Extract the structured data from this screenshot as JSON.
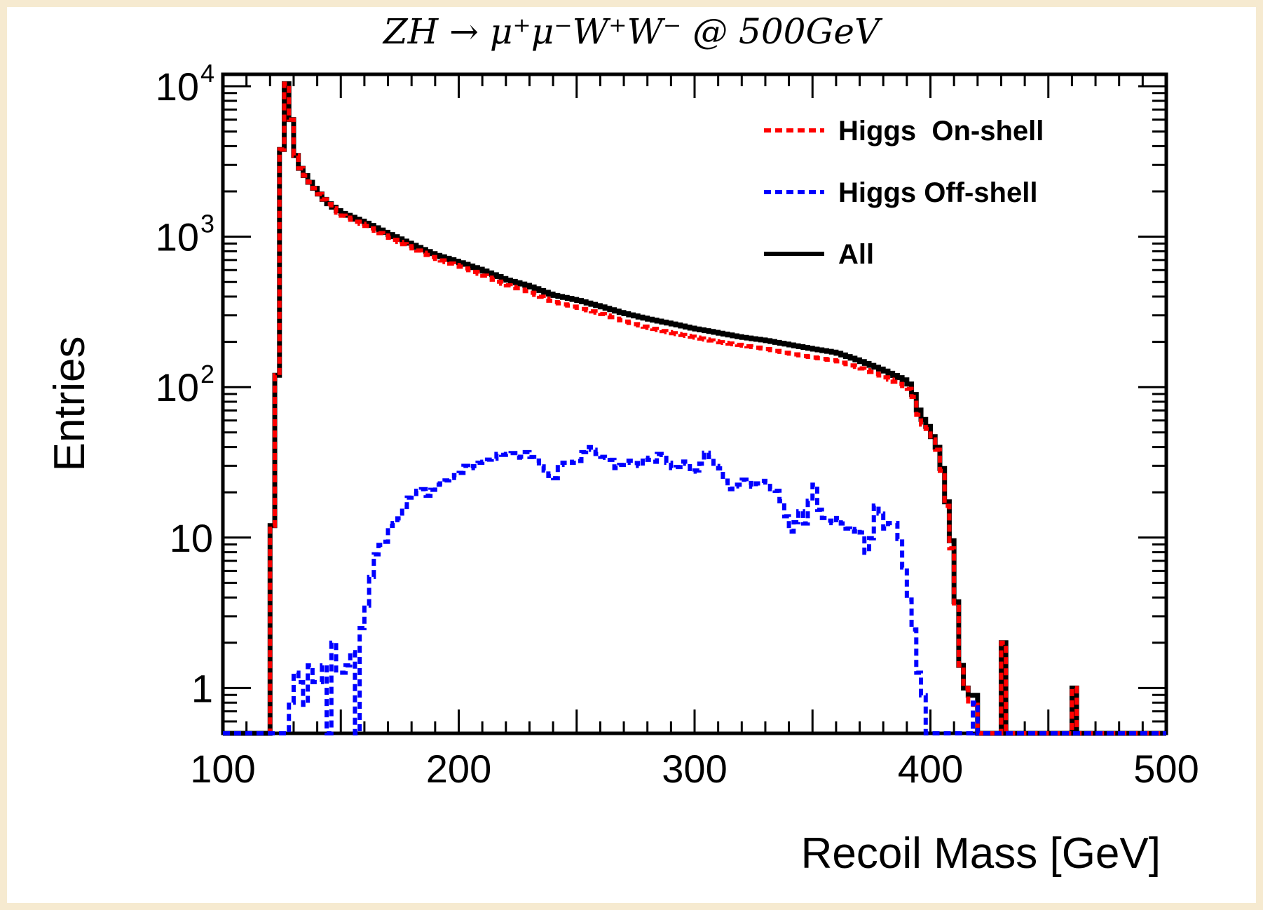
{
  "chart_data": {
    "type": "line",
    "title": "ZH → μ⁺μ⁻W⁺W⁻ @ 500GeV",
    "xlabel": "Recoil Mass [GeV]",
    "ylabel": "Entries",
    "xlim": [
      100,
      500
    ],
    "ylim": [
      0.5,
      12000
    ],
    "yscale": "log",
    "grid": false,
    "legend_position": "top-right",
    "x_ticks": [
      "100",
      "200",
      "300",
      "400",
      "500"
    ],
    "y_ticks": [
      {
        "value": 1,
        "label": "1"
      },
      {
        "value": 10,
        "label": "10"
      },
      {
        "value": 100,
        "label": "10",
        "exp": "2"
      },
      {
        "value": 1000,
        "label": "10",
        "exp": "3"
      },
      {
        "value": 10000,
        "label": "10",
        "exp": "4"
      }
    ],
    "bin_width": 2,
    "series": [
      {
        "name": "Higgs  On-shell",
        "color": "#ff0000",
        "style": "dashed",
        "points": [
          [
            100,
            0
          ],
          [
            120,
            0
          ],
          [
            122,
            12
          ],
          [
            124,
            1200
          ],
          [
            126,
            12000
          ],
          [
            128,
            9000
          ],
          [
            130,
            4000
          ],
          [
            132,
            3000
          ],
          [
            134,
            2700
          ],
          [
            136,
            2400
          ],
          [
            138,
            2200
          ],
          [
            140,
            2000
          ],
          [
            144,
            1700
          ],
          [
            150,
            1400
          ],
          [
            160,
            1200
          ],
          [
            170,
            1000
          ],
          [
            180,
            850
          ],
          [
            190,
            720
          ],
          [
            200,
            640
          ],
          [
            210,
            560
          ],
          [
            220,
            480
          ],
          [
            230,
            430
          ],
          [
            240,
            370
          ],
          [
            250,
            340
          ],
          [
            260,
            310
          ],
          [
            270,
            275
          ],
          [
            280,
            250
          ],
          [
            290,
            230
          ],
          [
            300,
            215
          ],
          [
            310,
            200
          ],
          [
            320,
            190
          ],
          [
            330,
            180
          ],
          [
            340,
            168
          ],
          [
            350,
            158
          ],
          [
            360,
            150
          ],
          [
            370,
            135
          ],
          [
            380,
            118
          ],
          [
            390,
            100
          ],
          [
            392,
            95
          ],
          [
            394,
            78
          ],
          [
            396,
            55
          ],
          [
            398,
            58
          ],
          [
            400,
            48
          ],
          [
            402,
            42
          ],
          [
            404,
            35
          ],
          [
            406,
            22
          ],
          [
            408,
            12
          ],
          [
            410,
            6
          ],
          [
            412,
            2
          ],
          [
            414,
            1
          ],
          [
            416,
            1
          ],
          [
            418,
            0.6
          ],
          [
            420,
            1
          ],
          [
            422,
            0
          ],
          [
            430,
            0
          ],
          [
            432,
            2
          ],
          [
            434,
            0
          ],
          [
            436,
            0
          ],
          [
            460,
            0
          ],
          [
            462,
            1
          ],
          [
            464,
            0
          ],
          [
            500,
            0
          ]
        ]
      },
      {
        "name": "Higgs Off-shell",
        "color": "#0000ff",
        "style": "dashed",
        "points": [
          [
            100,
            0
          ],
          [
            128,
            0
          ],
          [
            130,
            0.8
          ],
          [
            132,
            2
          ],
          [
            134,
            0.6
          ],
          [
            136,
            1
          ],
          [
            138,
            2
          ],
          [
            140,
            0.6
          ],
          [
            142,
            2
          ],
          [
            144,
            1
          ],
          [
            146,
            0
          ],
          [
            148,
            2
          ],
          [
            150,
            0.8
          ],
          [
            152,
            2
          ],
          [
            154,
            1
          ],
          [
            156,
            3
          ],
          [
            158,
            0
          ],
          [
            160,
            2.5
          ],
          [
            162,
            5
          ],
          [
            164,
            6
          ],
          [
            166,
            10
          ],
          [
            168,
            8
          ],
          [
            170,
            11
          ],
          [
            172,
            13
          ],
          [
            174,
            12
          ],
          [
            176,
            15
          ],
          [
            178,
            17
          ],
          [
            180,
            20
          ],
          [
            182,
            19
          ],
          [
            184,
            22
          ],
          [
            186,
            20
          ],
          [
            188,
            18
          ],
          [
            190,
            24
          ],
          [
            192,
            21
          ],
          [
            194,
            25
          ],
          [
            196,
            23
          ],
          [
            198,
            27
          ],
          [
            200,
            25
          ],
          [
            202,
            29
          ],
          [
            204,
            31
          ],
          [
            206,
            27
          ],
          [
            208,
            33
          ],
          [
            210,
            30
          ],
          [
            212,
            34
          ],
          [
            214,
            32
          ],
          [
            216,
            35
          ],
          [
            218,
            37
          ],
          [
            220,
            34
          ],
          [
            222,
            38
          ],
          [
            224,
            35
          ],
          [
            226,
            33
          ],
          [
            228,
            36
          ],
          [
            230,
            38
          ],
          [
            232,
            31
          ],
          [
            234,
            34
          ],
          [
            236,
            26
          ],
          [
            238,
            30
          ],
          [
            240,
            22
          ],
          [
            242,
            28
          ],
          [
            244,
            33
          ],
          [
            246,
            30
          ],
          [
            248,
            34
          ],
          [
            250,
            29
          ],
          [
            252,
            36
          ],
          [
            254,
            38
          ],
          [
            256,
            42
          ],
          [
            258,
            35
          ],
          [
            260,
            37
          ],
          [
            262,
            32
          ],
          [
            264,
            36
          ],
          [
            266,
            30
          ],
          [
            268,
            28
          ],
          [
            270,
            33
          ],
          [
            272,
            30
          ],
          [
            274,
            35
          ],
          [
            276,
            28
          ],
          [
            278,
            32
          ],
          [
            280,
            36
          ],
          [
            282,
            30
          ],
          [
            284,
            34
          ],
          [
            286,
            38
          ],
          [
            288,
            33
          ],
          [
            290,
            30
          ],
          [
            292,
            28
          ],
          [
            294,
            31
          ],
          [
            296,
            33
          ],
          [
            298,
            29
          ],
          [
            300,
            26
          ],
          [
            302,
            30
          ],
          [
            304,
            32
          ],
          [
            306,
            42
          ],
          [
            308,
            28
          ],
          [
            310,
            32
          ],
          [
            312,
            26
          ],
          [
            314,
            22
          ],
          [
            316,
            20
          ],
          [
            318,
            24
          ],
          [
            320,
            21
          ],
          [
            322,
            28
          ],
          [
            324,
            19
          ],
          [
            326,
            25
          ],
          [
            328,
            21
          ],
          [
            330,
            27
          ],
          [
            332,
            20
          ],
          [
            334,
            22
          ],
          [
            336,
            19
          ],
          [
            338,
            16
          ],
          [
            340,
            12
          ],
          [
            342,
            10
          ],
          [
            344,
            16
          ],
          [
            346,
            14
          ],
          [
            348,
            11
          ],
          [
            350,
            28
          ],
          [
            352,
            18
          ],
          [
            354,
            13
          ],
          [
            356,
            14
          ],
          [
            358,
            12
          ],
          [
            360,
            13
          ],
          [
            362,
            14
          ],
          [
            364,
            11
          ],
          [
            366,
            12
          ],
          [
            368,
            10
          ],
          [
            370,
            13
          ],
          [
            372,
            9
          ],
          [
            374,
            7
          ],
          [
            376,
            14
          ],
          [
            378,
            19
          ],
          [
            380,
            11
          ],
          [
            382,
            12
          ],
          [
            384,
            13
          ],
          [
            386,
            12
          ],
          [
            388,
            8
          ],
          [
            390,
            5
          ],
          [
            392,
            3
          ],
          [
            394,
            2
          ],
          [
            396,
            0.8
          ],
          [
            398,
            1
          ],
          [
            400,
            0
          ],
          [
            418,
            0
          ],
          [
            420,
            0.8
          ],
          [
            422,
            0
          ],
          [
            500,
            0
          ]
        ]
      },
      {
        "name": "All",
        "color": "#000000",
        "style": "solid",
        "points": [
          [
            100,
            0
          ],
          [
            120,
            0
          ],
          [
            122,
            12
          ],
          [
            124,
            1200
          ],
          [
            126,
            12000
          ],
          [
            128,
            9000
          ],
          [
            130,
            4000
          ],
          [
            132,
            3000
          ],
          [
            134,
            2700
          ],
          [
            136,
            2400
          ],
          [
            138,
            2200
          ],
          [
            140,
            2000
          ],
          [
            144,
            1700
          ],
          [
            150,
            1450
          ],
          [
            160,
            1250
          ],
          [
            170,
            1050
          ],
          [
            180,
            890
          ],
          [
            190,
            760
          ],
          [
            200,
            680
          ],
          [
            210,
            600
          ],
          [
            220,
            520
          ],
          [
            230,
            470
          ],
          [
            240,
            410
          ],
          [
            250,
            380
          ],
          [
            260,
            345
          ],
          [
            270,
            310
          ],
          [
            280,
            285
          ],
          [
            290,
            265
          ],
          [
            300,
            245
          ],
          [
            310,
            230
          ],
          [
            320,
            215
          ],
          [
            330,
            205
          ],
          [
            340,
            192
          ],
          [
            350,
            180
          ],
          [
            360,
            170
          ],
          [
            370,
            150
          ],
          [
            380,
            130
          ],
          [
            390,
            110
          ],
          [
            392,
            100
          ],
          [
            394,
            80
          ],
          [
            396,
            62
          ],
          [
            398,
            60
          ],
          [
            400,
            50
          ],
          [
            402,
            44
          ],
          [
            404,
            36
          ],
          [
            406,
            23
          ],
          [
            408,
            13
          ],
          [
            410,
            7
          ],
          [
            412,
            2
          ],
          [
            414,
            1
          ],
          [
            416,
            1
          ],
          [
            418,
            0.8
          ],
          [
            420,
            1
          ],
          [
            422,
            0
          ],
          [
            430,
            0
          ],
          [
            432,
            2
          ],
          [
            434,
            0
          ],
          [
            436,
            0
          ],
          [
            460,
            0
          ],
          [
            462,
            1
          ],
          [
            464,
            0
          ],
          [
            500,
            0
          ]
        ]
      }
    ]
  }
}
